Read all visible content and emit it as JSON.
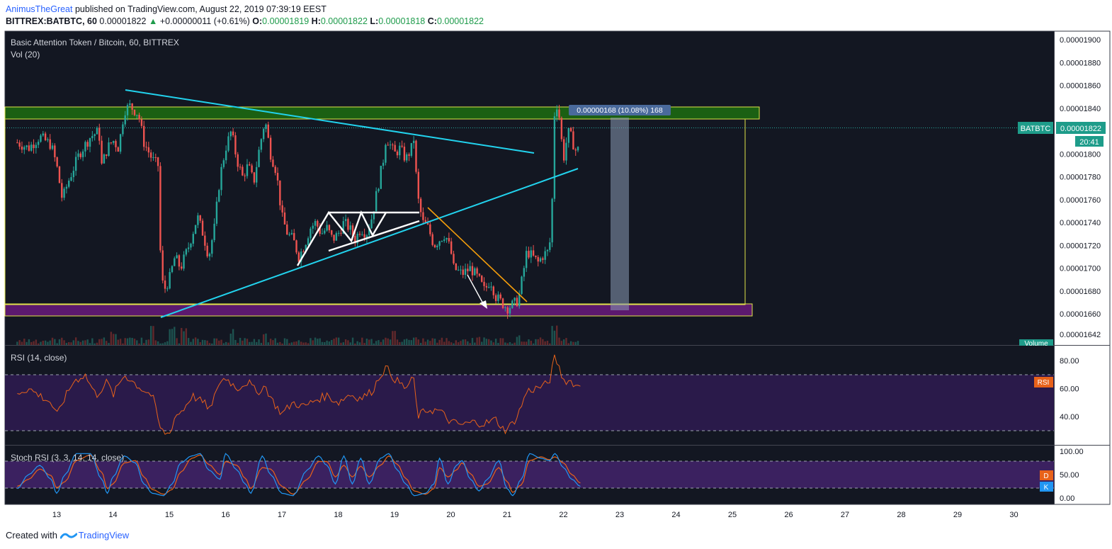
{
  "header": {
    "author": "AnimusTheGreat",
    "published_text": " published on TradingView.com, August 22, 2019 07:39:19 EEST",
    "symbol": "BITTREX:BATBTC, 60",
    "price": "0.00001822",
    "change": "+0.00000011 (+0.61%)",
    "o_label": "O:",
    "o": "0.00001819",
    "h_label": "H:",
    "h": "0.00001822",
    "l_label": "L:",
    "l": "0.00001818",
    "c_label": "C:",
    "c": "0.00001822"
  },
  "chart_data": [
    {
      "type": "candlestick",
      "title": "Basic Attention Token / Bitcoin, 60, BITTREX",
      "volume_label": "Vol (20)",
      "symbol_badge": "BATBTC",
      "last_price": "0.00001822",
      "countdown": "20:41",
      "volume_badge": "Volume",
      "measure_label": "0.00000168 (10.08%) 168",
      "x_ticks": [
        "13",
        "14",
        "15",
        "16",
        "17",
        "18",
        "19",
        "20",
        "21",
        "22",
        "23",
        "24",
        "25",
        "26",
        "27",
        "28",
        "29",
        "30"
      ],
      "y_ticks": [
        "0.00001900",
        "0.00001880",
        "0.00001860",
        "0.00001840",
        "0.00001820",
        "0.00001800",
        "0.00001780",
        "0.00001760",
        "0.00001740",
        "0.00001720",
        "0.00001700",
        "0.00001680",
        "0.00001660",
        "0.00001642"
      ],
      "ylim": [
        1.64e-05,
        1.9e-05
      ],
      "price_path": [
        [
          12.3,
          1810
        ],
        [
          12.5,
          1805
        ],
        [
          12.7,
          1815
        ],
        [
          12.9,
          1808
        ],
        [
          13.0,
          1790
        ],
        [
          13.1,
          1760
        ],
        [
          13.2,
          1775
        ],
        [
          13.4,
          1800
        ],
        [
          13.6,
          1815
        ],
        [
          13.75,
          1820
        ],
        [
          13.8,
          1790
        ],
        [
          13.9,
          1805
        ],
        [
          14.0,
          1812
        ],
        [
          14.1,
          1805
        ],
        [
          14.2,
          1838
        ],
        [
          14.3,
          1842
        ],
        [
          14.45,
          1835
        ],
        [
          14.55,
          1810
        ],
        [
          14.7,
          1795
        ],
        [
          14.8,
          1790
        ],
        [
          14.85,
          1700
        ],
        [
          14.9,
          1680
        ],
        [
          15.0,
          1690
        ],
        [
          15.1,
          1710
        ],
        [
          15.2,
          1700
        ],
        [
          15.35,
          1720
        ],
        [
          15.5,
          1745
        ],
        [
          15.6,
          1730
        ],
        [
          15.7,
          1710
        ],
        [
          15.8,
          1735
        ],
        [
          15.9,
          1780
        ],
        [
          16.0,
          1805
        ],
        [
          16.1,
          1820
        ],
        [
          16.2,
          1795
        ],
        [
          16.3,
          1780
        ],
        [
          16.4,
          1790
        ],
        [
          16.5,
          1775
        ],
        [
          16.6,
          1805
        ],
        [
          16.7,
          1830
        ],
        [
          16.8,
          1800
        ],
        [
          16.9,
          1785
        ],
        [
          17.0,
          1745
        ],
        [
          17.1,
          1730
        ],
        [
          17.2,
          1725
        ],
        [
          17.3,
          1710
        ],
        [
          17.4,
          1720
        ],
        [
          17.5,
          1735
        ],
        [
          17.6,
          1740
        ],
        [
          17.7,
          1730
        ],
        [
          17.8,
          1735
        ],
        [
          17.9,
          1725
        ],
        [
          18.0,
          1730
        ],
        [
          18.1,
          1740
        ],
        [
          18.2,
          1735
        ],
        [
          18.3,
          1725
        ],
        [
          18.4,
          1735
        ],
        [
          18.5,
          1730
        ],
        [
          18.6,
          1745
        ],
        [
          18.7,
          1770
        ],
        [
          18.8,
          1795
        ],
        [
          18.85,
          1815
        ],
        [
          19.0,
          1800
        ],
        [
          19.1,
          1805
        ],
        [
          19.2,
          1795
        ],
        [
          19.3,
          1805
        ],
        [
          19.35,
          1815
        ],
        [
          19.4,
          1765
        ],
        [
          19.5,
          1740
        ],
        [
          19.6,
          1735
        ],
        [
          19.7,
          1720
        ],
        [
          19.8,
          1725
        ],
        [
          19.9,
          1730
        ],
        [
          20.0,
          1715
        ],
        [
          20.05,
          1700
        ],
        [
          20.2,
          1695
        ],
        [
          20.35,
          1700
        ],
        [
          20.5,
          1690
        ],
        [
          20.6,
          1680
        ],
        [
          20.7,
          1690
        ],
        [
          20.8,
          1675
        ],
        [
          20.9,
          1670
        ],
        [
          21.0,
          1665
        ],
        [
          21.1,
          1668
        ],
        [
          21.2,
          1672
        ],
        [
          21.3,
          1700
        ],
        [
          21.35,
          1715
        ],
        [
          21.45,
          1710
        ],
        [
          21.55,
          1705
        ],
        [
          21.65,
          1712
        ],
        [
          21.75,
          1715
        ],
        [
          21.8,
          1760
        ],
        [
          21.85,
          1850
        ],
        [
          21.92,
          1835
        ],
        [
          22.0,
          1795
        ],
        [
          22.05,
          1810
        ],
        [
          22.1,
          1820
        ],
        [
          22.2,
          1805
        ],
        [
          22.25,
          1800
        ],
        [
          22.3,
          1822
        ]
      ],
      "volume": [
        [
          14.0,
          12
        ],
        [
          14.7,
          25
        ],
        [
          15.05,
          18
        ],
        [
          15.25,
          18
        ],
        [
          16.1,
          16
        ],
        [
          16.7,
          14
        ],
        [
          18.0,
          10
        ],
        [
          19.0,
          14
        ],
        [
          20.5,
          10
        ],
        [
          21.2,
          10
        ],
        [
          21.85,
          20
        ]
      ]
    },
    {
      "type": "line",
      "title": "RSI (14, close)",
      "badge": "RSI",
      "y_ticks": [
        "80.00",
        "60.00",
        "40.00"
      ],
      "ylim": [
        22,
        90
      ],
      "upper_band": 70,
      "lower_band": 30,
      "values_path": [
        [
          12.3,
          57
        ],
        [
          12.5,
          60
        ],
        [
          12.7,
          55
        ],
        [
          12.9,
          50
        ],
        [
          13.0,
          40
        ],
        [
          13.1,
          50
        ],
        [
          13.3,
          65
        ],
        [
          13.5,
          70
        ],
        [
          13.7,
          55
        ],
        [
          13.9,
          65
        ],
        [
          14.0,
          55
        ],
        [
          14.2,
          70
        ],
        [
          14.35,
          65
        ],
        [
          14.5,
          60
        ],
        [
          14.7,
          55
        ],
        [
          14.85,
          30
        ],
        [
          15.0,
          27
        ],
        [
          15.1,
          40
        ],
        [
          15.25,
          45
        ],
        [
          15.4,
          55
        ],
        [
          15.6,
          50
        ],
        [
          15.75,
          45
        ],
        [
          15.85,
          62
        ],
        [
          16.0,
          68
        ],
        [
          16.2,
          60
        ],
        [
          16.4,
          65
        ],
        [
          16.55,
          57
        ],
        [
          16.7,
          62
        ],
        [
          16.85,
          50
        ],
        [
          17.0,
          42
        ],
        [
          17.2,
          50
        ],
        [
          17.4,
          47
        ],
        [
          17.6,
          52
        ],
        [
          17.8,
          55
        ],
        [
          18.0,
          50
        ],
        [
          18.2,
          56
        ],
        [
          18.4,
          53
        ],
        [
          18.6,
          58
        ],
        [
          18.75,
          70
        ],
        [
          18.85,
          75
        ],
        [
          19.0,
          67
        ],
        [
          19.2,
          60
        ],
        [
          19.35,
          68
        ],
        [
          19.4,
          40
        ],
        [
          19.6,
          45
        ],
        [
          19.8,
          44
        ],
        [
          20.0,
          36
        ],
        [
          20.2,
          34
        ],
        [
          20.4,
          36
        ],
        [
          20.6,
          35
        ],
        [
          20.8,
          38
        ],
        [
          20.95,
          30
        ],
        [
          21.1,
          35
        ],
        [
          21.2,
          42
        ],
        [
          21.35,
          58
        ],
        [
          21.5,
          60
        ],
        [
          21.65,
          62
        ],
        [
          21.75,
          65
        ],
        [
          21.85,
          83
        ],
        [
          22.0,
          66
        ],
        [
          22.15,
          65
        ],
        [
          22.25,
          61
        ],
        [
          22.32,
          64
        ]
      ]
    },
    {
      "type": "line",
      "title": "Stoch RSI (3, 3, 14, 14, close)",
      "badge_d": "D",
      "badge_k": "K",
      "y_ticks": [
        "100.00",
        "50.00",
        "0.00"
      ],
      "ylim": [
        -8,
        108
      ],
      "upper_band": 80,
      "lower_band": 20,
      "k_path": [
        [
          12.3,
          20
        ],
        [
          12.5,
          50
        ],
        [
          12.7,
          70
        ],
        [
          12.9,
          40
        ],
        [
          13.0,
          10
        ],
        [
          13.15,
          50
        ],
        [
          13.35,
          95
        ],
        [
          13.6,
          95
        ],
        [
          13.8,
          40
        ],
        [
          13.9,
          10
        ],
        [
          14.0,
          45
        ],
        [
          14.2,
          90
        ],
        [
          14.4,
          75
        ],
        [
          14.55,
          30
        ],
        [
          14.7,
          10
        ],
        [
          14.9,
          5
        ],
        [
          15.05,
          30
        ],
        [
          15.2,
          75
        ],
        [
          15.4,
          90
        ],
        [
          15.55,
          95
        ],
        [
          15.7,
          60
        ],
        [
          15.9,
          40
        ],
        [
          16.0,
          95
        ],
        [
          16.2,
          60
        ],
        [
          16.35,
          30
        ],
        [
          16.45,
          10
        ],
        [
          16.65,
          90
        ],
        [
          16.8,
          50
        ],
        [
          17.0,
          10
        ],
        [
          17.2,
          5
        ],
        [
          17.45,
          60
        ],
        [
          17.65,
          90
        ],
        [
          17.8,
          70
        ],
        [
          17.95,
          30
        ],
        [
          18.1,
          90
        ],
        [
          18.25,
          30
        ],
        [
          18.4,
          85
        ],
        [
          18.55,
          30
        ],
        [
          18.75,
          85
        ],
        [
          18.9,
          95
        ],
        [
          19.05,
          60
        ],
        [
          19.2,
          30
        ],
        [
          19.35,
          5
        ],
        [
          19.55,
          10
        ],
        [
          19.7,
          30
        ],
        [
          19.8,
          85
        ],
        [
          19.95,
          30
        ],
        [
          20.1,
          70
        ],
        [
          20.2,
          80
        ],
        [
          20.35,
          40
        ],
        [
          20.5,
          15
        ],
        [
          20.65,
          40
        ],
        [
          20.85,
          80
        ],
        [
          21.0,
          20
        ],
        [
          21.1,
          5
        ],
        [
          21.25,
          40
        ],
        [
          21.4,
          95
        ],
        [
          21.6,
          85
        ],
        [
          21.75,
          80
        ],
        [
          21.85,
          95
        ],
        [
          22.0,
          65
        ],
        [
          22.15,
          40
        ],
        [
          22.3,
          25
        ]
      ],
      "d_path": [
        [
          12.3,
          25
        ],
        [
          12.5,
          40
        ],
        [
          12.7,
          62
        ],
        [
          12.9,
          48
        ],
        [
          13.0,
          22
        ],
        [
          13.15,
          35
        ],
        [
          13.35,
          80
        ],
        [
          13.6,
          92
        ],
        [
          13.8,
          55
        ],
        [
          13.9,
          20
        ],
        [
          14.0,
          30
        ],
        [
          14.2,
          75
        ],
        [
          14.4,
          80
        ],
        [
          14.55,
          45
        ],
        [
          14.7,
          18
        ],
        [
          14.9,
          8
        ],
        [
          15.05,
          18
        ],
        [
          15.2,
          55
        ],
        [
          15.4,
          85
        ],
        [
          15.55,
          92
        ],
        [
          15.7,
          72
        ],
        [
          15.9,
          50
        ],
        [
          16.0,
          78
        ],
        [
          16.2,
          70
        ],
        [
          16.35,
          42
        ],
        [
          16.45,
          20
        ],
        [
          16.65,
          65
        ],
        [
          16.8,
          62
        ],
        [
          17.0,
          25
        ],
        [
          17.2,
          8
        ],
        [
          17.45,
          40
        ],
        [
          17.65,
          78
        ],
        [
          17.8,
          78
        ],
        [
          17.95,
          45
        ],
        [
          18.1,
          70
        ],
        [
          18.25,
          45
        ],
        [
          18.4,
          68
        ],
        [
          18.55,
          45
        ],
        [
          18.75,
          70
        ],
        [
          18.9,
          90
        ],
        [
          19.05,
          72
        ],
        [
          19.2,
          42
        ],
        [
          19.35,
          15
        ],
        [
          19.55,
          8
        ],
        [
          19.7,
          20
        ],
        [
          19.8,
          65
        ],
        [
          19.95,
          45
        ],
        [
          20.1,
          60
        ],
        [
          20.2,
          75
        ],
        [
          20.35,
          52
        ],
        [
          20.5,
          25
        ],
        [
          20.65,
          30
        ],
        [
          20.85,
          65
        ],
        [
          21.0,
          35
        ],
        [
          21.1,
          12
        ],
        [
          21.25,
          28
        ],
        [
          21.4,
          80
        ],
        [
          21.6,
          88
        ],
        [
          21.75,
          82
        ],
        [
          21.85,
          88
        ],
        [
          22.0,
          75
        ],
        [
          22.15,
          50
        ],
        [
          22.3,
          32
        ]
      ]
    }
  ],
  "footer": {
    "created_with": "Created with",
    "brand": "TradingView"
  }
}
